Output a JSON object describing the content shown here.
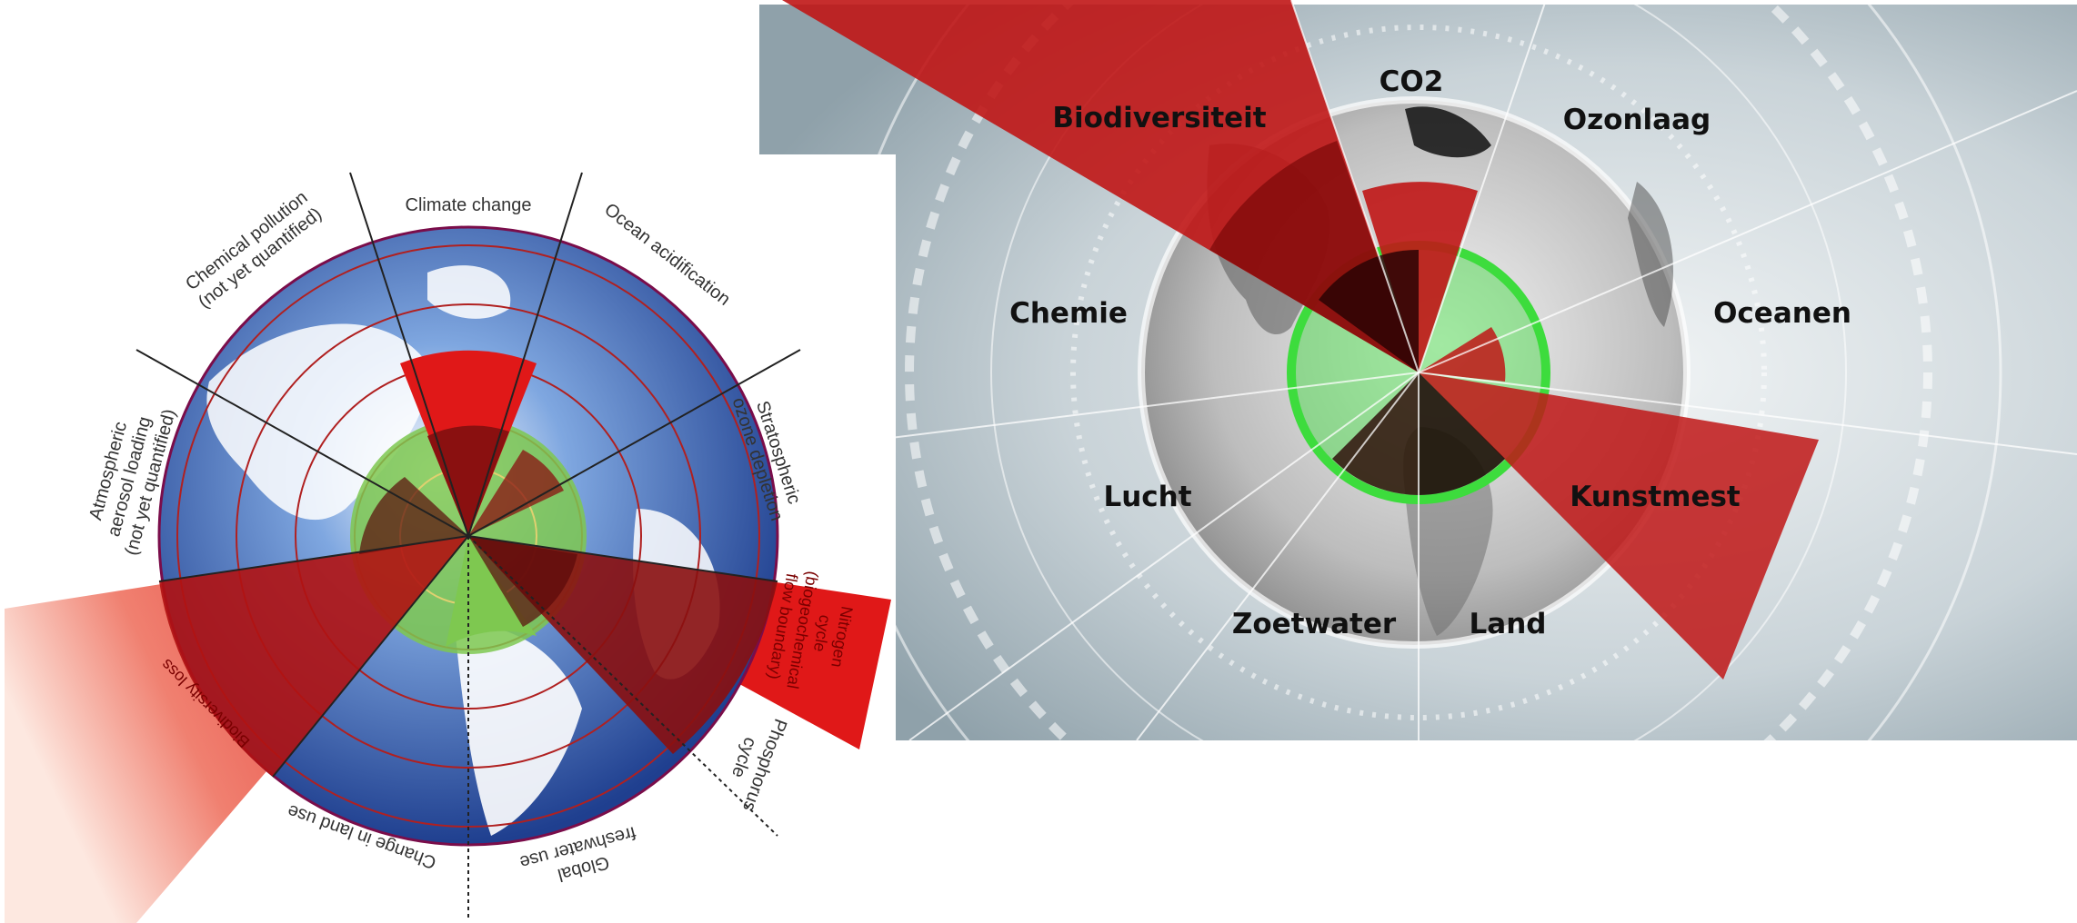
{
  "left_diagram": {
    "colors": {
      "globe_blue": "#2f5fb0",
      "safe_green": "#7ec850",
      "red_overshoot": "#cc1010",
      "dark_red": "#7a0d0d",
      "ring_line": "#b02020"
    },
    "labels": {
      "climate_change": "Climate change",
      "ocean_acidification": "Ocean acidification",
      "ozone_line1": "Stratospheric",
      "ozone_line2": "ozone depletion",
      "chemical_line1": "Chemical pollution",
      "chemical_line2": "(not yet quantified)",
      "aerosol_line1": "Atmospheric",
      "aerosol_line2": "aerosol loading",
      "aerosol_line3": "(not yet quantified)",
      "biodiversity": "Biodiversity loss",
      "land_use": "Change in land use",
      "freshwater_line1": "Global",
      "freshwater_line2": "freshwater use",
      "phosphorus_line1": "Phosphorus",
      "phosphorus_line2": "cycle",
      "nitrogen_line1": "Nitrogen",
      "nitrogen_line2": "cycle",
      "nitrogen_line3": "(biogeochemical",
      "nitrogen_line4": "flow boundary)"
    }
  },
  "right_diagram": {
    "colors": {
      "background": "#cfd8dd",
      "safe_green": "#3ddc3d",
      "red_overshoot": "#c01616",
      "dark_core": "#3a0606"
    },
    "labels": {
      "biodiversity": "Biodiversiteit",
      "co2": "CO2",
      "ozone": "Ozonlaag",
      "chemistry": "Chemie",
      "oceans": "Oceanen",
      "air": "Lucht",
      "fertilizer": "Kunstmest",
      "freshwater": "Zoetwater",
      "land": "Land"
    }
  }
}
